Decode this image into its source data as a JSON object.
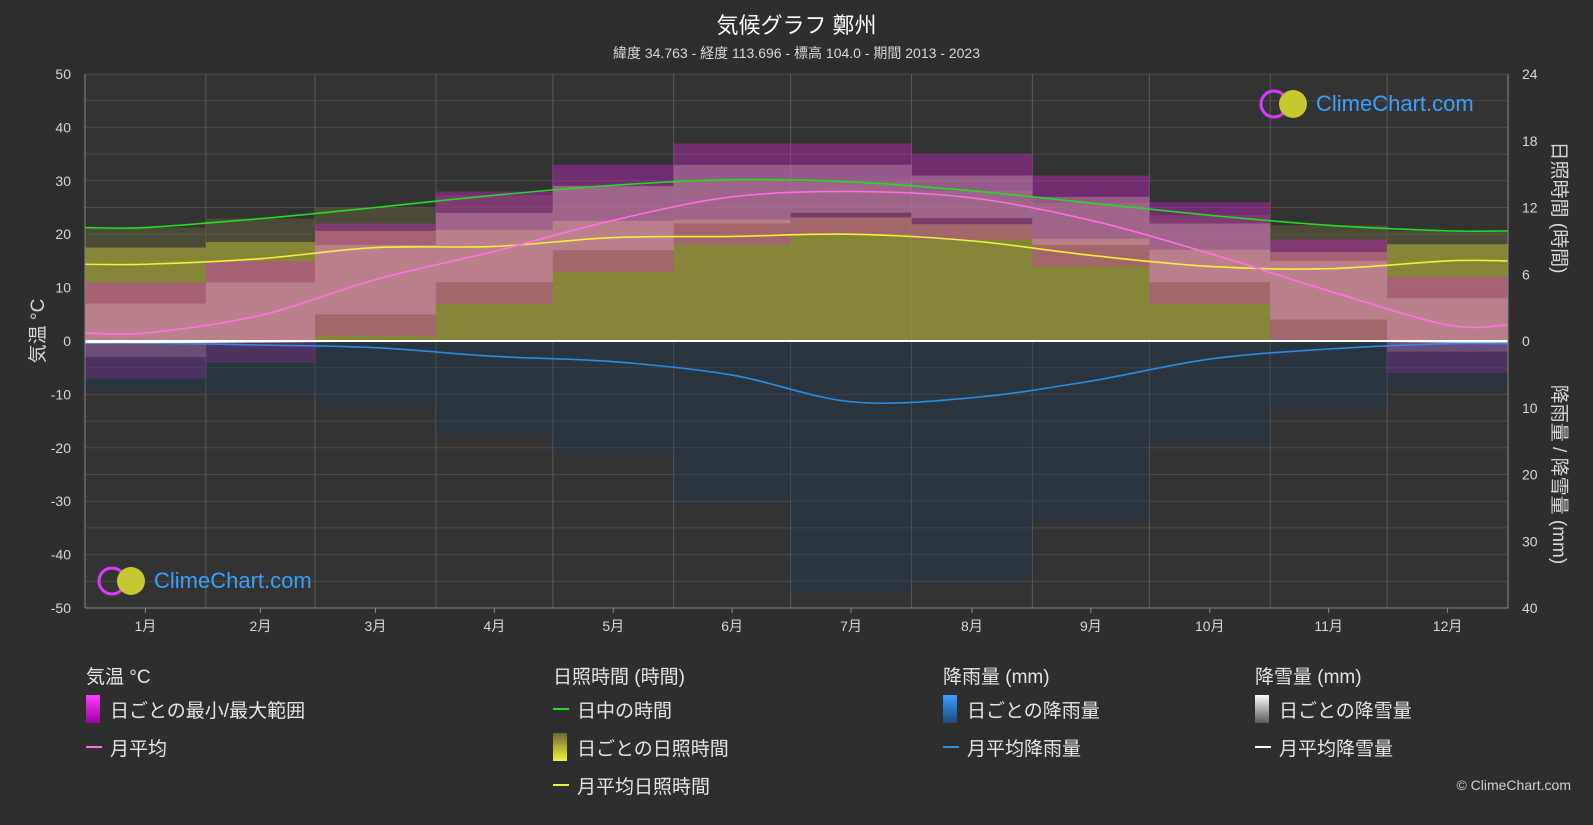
{
  "page": {
    "title": "気候グラフ 鄭州",
    "subtitle": "緯度 34.763 - 経度 113.696 - 標高 104.0 - 期間 2013 - 2023",
    "logo_text": "ClimeChart.com",
    "copyright": "© ClimeChart.com"
  },
  "colors": {
    "background": "#2e2e2e",
    "daylight": "#22dd22",
    "sunshine_avg": "#f2f23a",
    "sunshine_bar": "#b8b83a",
    "temp_avg": "#ff70e0",
    "temp_range": "#e020e0",
    "rain": "#2a8ee6",
    "snow": "#ffffff"
  },
  "chart_data": {
    "type": "line",
    "categories": [
      "1月",
      "2月",
      "3月",
      "4月",
      "5月",
      "6月",
      "7月",
      "8月",
      "9月",
      "10月",
      "11月",
      "12月"
    ],
    "axes": {
      "left": {
        "label": "気温 °C",
        "min": -50,
        "max": 50,
        "ticks": [
          50,
          40,
          30,
          20,
          10,
          0,
          -10,
          -20,
          -30,
          -40,
          -50
        ]
      },
      "right_top": {
        "label": "日照時間 (時間)",
        "min": 0,
        "max": 24,
        "ticks": [
          24,
          18,
          12,
          6,
          0
        ]
      },
      "right_bottom": {
        "label": "降雨量 / 降雪量 (mm)",
        "min": 0,
        "max": 40,
        "ticks": [
          10,
          20,
          30,
          40
        ]
      }
    },
    "grid": true,
    "series": [
      {
        "name": "日中の時間",
        "axis": "hours",
        "values": [
          10.2,
          11.0,
          12.0,
          13.1,
          14.0,
          14.5,
          14.3,
          13.5,
          12.4,
          11.3,
          10.4,
          9.9
        ]
      },
      {
        "name": "月平均日照時間",
        "axis": "hours",
        "values": [
          6.9,
          7.4,
          8.4,
          8.5,
          9.3,
          9.4,
          9.6,
          9.0,
          7.7,
          6.7,
          6.5,
          7.2
        ]
      },
      {
        "name": "月平均",
        "axis": "temperature",
        "values": [
          1.5,
          4.8,
          11.5,
          16.8,
          22.6,
          27.0,
          28.0,
          26.8,
          22.6,
          16.4,
          9.4,
          3.0
        ]
      },
      {
        "name": "月平均降雨量",
        "axis": "precipitation",
        "values": [
          0.3,
          0.6,
          1.0,
          2.3,
          3.1,
          5.1,
          9.1,
          8.5,
          6.0,
          2.7,
          1.2,
          0.4
        ]
      },
      {
        "name": "月平均降雪量",
        "axis": "precipitation",
        "values": [
          0.2,
          0.1,
          0.0,
          0.0,
          0.0,
          0.0,
          0.0,
          0.0,
          0.0,
          0.0,
          0.0,
          0.1
        ]
      }
    ],
    "daily_range": {
      "name": "日ごとの最小/最大範囲",
      "min": [
        -3,
        0,
        5,
        11,
        17,
        22,
        24,
        23,
        18,
        11,
        4,
        -2
      ],
      "max": [
        7,
        11,
        18,
        24,
        29,
        33,
        33,
        31,
        27,
        22,
        15,
        8
      ]
    }
  },
  "legend": {
    "temperature": {
      "header": "気温 °C",
      "items": [
        "日ごとの最小/最大範囲",
        "月平均"
      ]
    },
    "sunshine": {
      "header": "日照時間 (時間)",
      "items": [
        "日中の時間",
        "日ごとの日照時間",
        "月平均日照時間"
      ]
    },
    "rain": {
      "header": "降雨量 (mm)",
      "items": [
        "日ごとの降雨量",
        "月平均降雨量"
      ]
    },
    "snow": {
      "header": "降雪量 (mm)",
      "items": [
        "日ごとの降雪量",
        "月平均降雪量"
      ]
    }
  }
}
